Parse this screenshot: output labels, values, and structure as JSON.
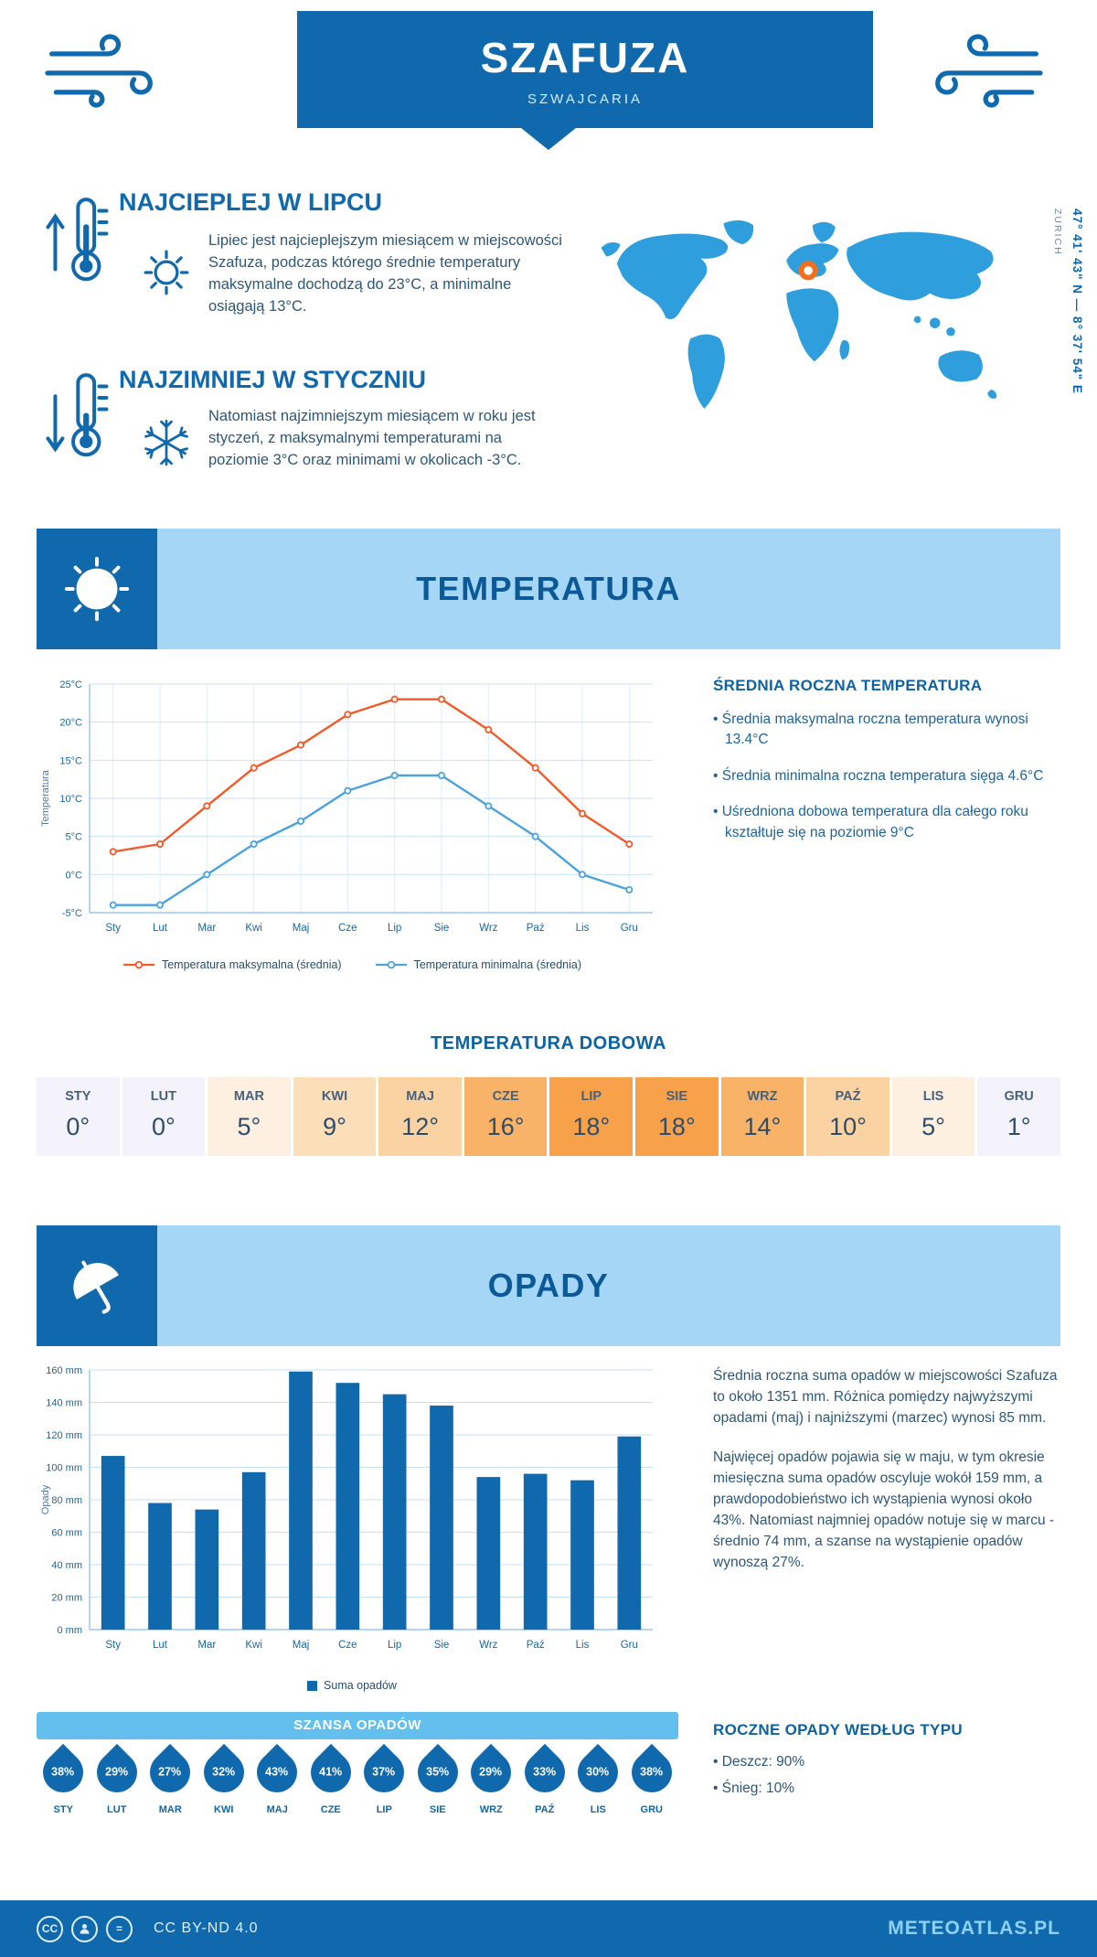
{
  "header": {
    "title": "SZAFUZA",
    "subtitle": "SZWAJCARIA",
    "coordinates": "47° 41' 43\" N — 8° 37' 54\" E",
    "coordinates_city": "ZURICH"
  },
  "intro": {
    "warm_title": "NAJCIEPLEJ W LIPCU",
    "warm_text": "Lipiec jest najcieplejszym miesiącem w miejscowości Szafuza, podczas którego średnie temperatury maksymalne dochodzą do 23°C, a minimalne osiągają 13°C.",
    "cold_title": "NAJZIMNIEJ W STYCZNIU",
    "cold_text": "Natomiast najzimniejszym miesiącem w roku jest styczeń, z maksymalnymi temperaturami na poziomie 3°C oraz minimami w okolicach -3°C."
  },
  "temperature": {
    "band_title": "TEMPERATURA",
    "summary_title": "ŚREDNIA ROCZNA TEMPERATURA",
    "bullets": [
      "Średnia maksymalna roczna temperatura wynosi 13.4°C",
      "Średnia minimalna roczna temperatura sięga 4.6°C",
      "Uśredniona dobowa temperatura dla całego roku kształtuje się na poziomie 9°C"
    ],
    "daily_title": "TEMPERATURA DOBOWA",
    "daily_months": [
      "STY",
      "LUT",
      "MAR",
      "KWI",
      "MAJ",
      "CZE",
      "LIP",
      "SIE",
      "WRZ",
      "PAŹ",
      "LIS",
      "GRU"
    ],
    "daily_values": [
      "0°",
      "0°",
      "5°",
      "9°",
      "12°",
      "16°",
      "18°",
      "18°",
      "14°",
      "10°",
      "5°",
      "1°"
    ],
    "daily_colors": [
      "#f4f3fb",
      "#f4f3fb",
      "#fdf0e1",
      "#fcdeb9",
      "#fbd2a2",
      "#f9b369",
      "#f7a14b",
      "#f7a14b",
      "#f9b369",
      "#fbd2a2",
      "#fdf0e1",
      "#f4f3fb"
    ]
  },
  "precipitation": {
    "band_title": "OPADY",
    "paragraph1": "Średnia roczna suma opadów w miejscowości Szafuza to około 1351 mm. Różnica pomiędzy najwyższymi opadami (maj) i najniższymi (marzec) wynosi 85 mm.",
    "paragraph2": "Najwięcej opadów pojawia się w maju, w tym okresie miesięczna suma opadów oscyluje wokół 159 mm, a prawdopodobieństwo ich wystąpienia wynosi około 43%. Natomiast najmniej opadów notuje się w marcu - średnio 74 mm, a szanse na wystąpienie opadów wynoszą 27%.",
    "chance_title": "SZANSA OPADÓW",
    "chance_months": [
      "STY",
      "LUT",
      "MAR",
      "KWI",
      "MAJ",
      "CZE",
      "LIP",
      "SIE",
      "WRZ",
      "PAŹ",
      "LIS",
      "GRU"
    ],
    "chance_values": [
      "38%",
      "29%",
      "27%",
      "32%",
      "43%",
      "41%",
      "37%",
      "35%",
      "29%",
      "33%",
      "30%",
      "38%"
    ],
    "type_title": "ROCZNE OPADY WEDŁUG TYPU",
    "type_bullets": [
      "Deszcz: 90%",
      "Śnieg: 10%"
    ]
  },
  "footer": {
    "license": "CC BY-ND 4.0",
    "brand": "METEOATLAS.PL"
  },
  "colors": {
    "primary": "#1069ad",
    "band_background": "#a5d6f5",
    "chance_band_background": "#63bfee",
    "max_line": "#f15a29",
    "min_line": "#4aa3dd",
    "bar": "#1069ad",
    "map_land": "#2f9edd",
    "map_marker": "#f2701d"
  },
  "chart_data": [
    {
      "type": "line",
      "title": "",
      "x": [
        "Sty",
        "Lut",
        "Mar",
        "Kwi",
        "Maj",
        "Cze",
        "Lip",
        "Sie",
        "Wrz",
        "Paź",
        "Lis",
        "Gru"
      ],
      "ylabel": "Temperatura",
      "ylim": [
        -5,
        25
      ],
      "ytick_step": 5,
      "ytick_suffix": "°C",
      "grid": true,
      "legend_position": "bottom",
      "series": [
        {
          "name": "Temperatura maksymalna (średnia)",
          "color": "#f15a29",
          "values": [
            3,
            4,
            9,
            14,
            17,
            21,
            23,
            23,
            19,
            14,
            8,
            4
          ]
        },
        {
          "name": "Temperatura minimalna (średnia)",
          "color": "#4aa3dd",
          "values": [
            -4,
            -4,
            0,
            4,
            7,
            11,
            13,
            13,
            9,
            5,
            0,
            -2
          ]
        }
      ]
    },
    {
      "type": "bar",
      "title": "",
      "x": [
        "Sty",
        "Lut",
        "Mar",
        "Kwi",
        "Maj",
        "Cze",
        "Lip",
        "Sie",
        "Wrz",
        "Paź",
        "Lis",
        "Gru"
      ],
      "ylabel": "Opady",
      "ylim": [
        0,
        160
      ],
      "ytick_step": 20,
      "ytick_suffix": " mm",
      "grid": true,
      "legend_position": "bottom",
      "series": [
        {
          "name": "Suma opadów",
          "color": "#1069ad",
          "values": [
            107,
            78,
            74,
            97,
            159,
            152,
            145,
            138,
            94,
            96,
            92,
            119
          ]
        }
      ]
    }
  ]
}
